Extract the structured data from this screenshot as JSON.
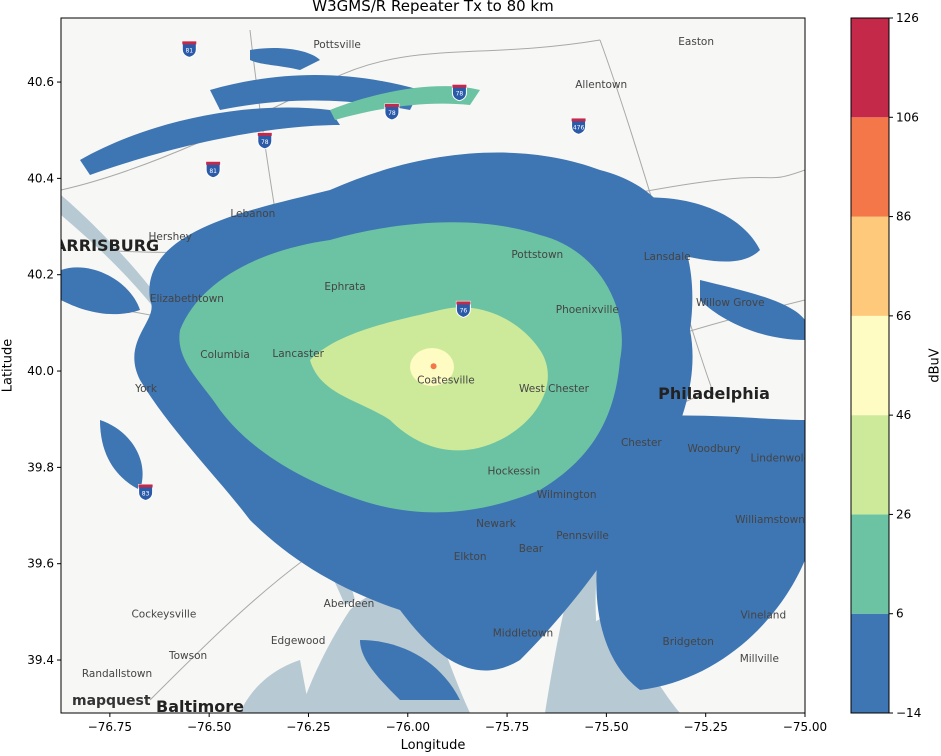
{
  "title": "W3GMS/R Repeater Tx to 80 km",
  "xlabel": "Longitude",
  "ylabel": "Latitude",
  "colorbar": {
    "label": "dBuV",
    "ticks": [
      "126",
      "106",
      "86",
      "66",
      "46",
      "26",
      "6",
      "−14"
    ],
    "bins": [
      {
        "from": -14,
        "to": 6,
        "color": "#3e75b3"
      },
      {
        "from": 6,
        "to": 26,
        "color": "#6cc3a3"
      },
      {
        "from": 26,
        "to": 46,
        "color": "#cdea9b"
      },
      {
        "from": 46,
        "to": 66,
        "color": "#fefcc2"
      },
      {
        "from": 66,
        "to": 86,
        "color": "#fec97b"
      },
      {
        "from": 86,
        "to": 106,
        "color": "#f4774a"
      },
      {
        "from": 106,
        "to": 126,
        "color": "#c4294a"
      }
    ]
  },
  "map": {
    "lon_range": [
      -76.873,
      -75.0
    ],
    "lat_range": [
      39.29,
      40.733
    ],
    "x_ticks": [
      "−76.75",
      "−76.50",
      "−76.25",
      "−76.00",
      "−75.75",
      "−75.50",
      "−75.25",
      "−75.00"
    ],
    "x_tick_values": [
      -76.75,
      -76.5,
      -76.25,
      -76.0,
      -75.75,
      -75.5,
      -75.25,
      -75.0
    ],
    "y_ticks": [
      "40.6",
      "40.4",
      "40.2",
      "40.0",
      "39.8",
      "39.6",
      "39.4"
    ],
    "y_tick_values": [
      40.6,
      40.4,
      40.2,
      40.0,
      39.8,
      39.6,
      39.4
    ],
    "water_color": "#b7c9d3",
    "attribution": "mapquest",
    "transmitter": {
      "lon": -75.935,
      "lat": 40.01
    },
    "places": [
      {
        "name": "Pottsville",
        "lon": -76.178,
        "lat": 40.679,
        "size": "s"
      },
      {
        "name": "Easton",
        "lon": -75.274,
        "lat": 40.685,
        "size": "s"
      },
      {
        "name": "Allentown",
        "lon": -75.513,
        "lat": 40.596,
        "size": "s"
      },
      {
        "name": "Lebanon",
        "lon": -76.39,
        "lat": 40.328,
        "size": "s"
      },
      {
        "name": "Hershey",
        "lon": -76.598,
        "lat": 40.28,
        "size": "s"
      },
      {
        "name": "HARRISBURG",
        "lon": -76.775,
        "lat": 40.258,
        "size": "l"
      },
      {
        "name": "Ephrata",
        "lon": -76.158,
        "lat": 40.177,
        "size": "s"
      },
      {
        "name": "Pottstown",
        "lon": -75.674,
        "lat": 40.243,
        "size": "s"
      },
      {
        "name": "Lansdale",
        "lon": -75.347,
        "lat": 40.239,
        "size": "s"
      },
      {
        "name": "Willow Grove",
        "lon": -75.188,
        "lat": 40.143,
        "size": "s"
      },
      {
        "name": "Phoenixville",
        "lon": -75.548,
        "lat": 40.129,
        "size": "s"
      },
      {
        "name": "Elizabethtown",
        "lon": -76.556,
        "lat": 40.152,
        "size": "s"
      },
      {
        "name": "Columbia",
        "lon": -76.46,
        "lat": 40.035,
        "size": "s"
      },
      {
        "name": "Lancaster",
        "lon": -76.276,
        "lat": 40.037,
        "size": "s"
      },
      {
        "name": "Coatesville",
        "lon": -75.904,
        "lat": 39.982,
        "size": "s"
      },
      {
        "name": "West Chester",
        "lon": -75.632,
        "lat": 39.965,
        "size": "s"
      },
      {
        "name": "Philadelphia",
        "lon": -75.229,
        "lat": 39.95,
        "size": "l"
      },
      {
        "name": "York",
        "lon": -76.659,
        "lat": 39.965,
        "size": "s"
      },
      {
        "name": "Chester",
        "lon": -75.412,
        "lat": 39.853,
        "size": "s"
      },
      {
        "name": "Woodbury",
        "lon": -75.229,
        "lat": 39.84,
        "size": "s"
      },
      {
        "name": "Lindenwold",
        "lon": -75.062,
        "lat": 39.82,
        "size": "s"
      },
      {
        "name": "Hockessin",
        "lon": -75.733,
        "lat": 39.793,
        "size": "s"
      },
      {
        "name": "Wilmington",
        "lon": -75.6,
        "lat": 39.745,
        "size": "s"
      },
      {
        "name": "Williamstown",
        "lon": -75.088,
        "lat": 39.693,
        "size": "s"
      },
      {
        "name": "Newark",
        "lon": -75.778,
        "lat": 39.685,
        "size": "s"
      },
      {
        "name": "Pennsville",
        "lon": -75.56,
        "lat": 39.66,
        "size": "s"
      },
      {
        "name": "Bear",
        "lon": -75.69,
        "lat": 39.633,
        "size": "s"
      },
      {
        "name": "Elkton",
        "lon": -75.843,
        "lat": 39.616,
        "size": "s"
      },
      {
        "name": "Aberdeen",
        "lon": -76.148,
        "lat": 39.518,
        "size": "s"
      },
      {
        "name": "Cockeysville",
        "lon": -76.614,
        "lat": 39.497,
        "size": "s"
      },
      {
        "name": "Edgewood",
        "lon": -76.276,
        "lat": 39.442,
        "size": "s"
      },
      {
        "name": "Towson",
        "lon": -76.553,
        "lat": 39.41,
        "size": "s"
      },
      {
        "name": "Middletown",
        "lon": -75.71,
        "lat": 39.457,
        "size": "s"
      },
      {
        "name": "Vineland",
        "lon": -75.105,
        "lat": 39.494,
        "size": "s"
      },
      {
        "name": "Bridgeton",
        "lon": -75.294,
        "lat": 39.44,
        "size": "s"
      },
      {
        "name": "Millville",
        "lon": -75.115,
        "lat": 39.404,
        "size": "s"
      },
      {
        "name": "Randallstown",
        "lon": -76.732,
        "lat": 39.373,
        "size": "s"
      },
      {
        "name": "Baltimore",
        "lon": -76.523,
        "lat": 39.3,
        "size": "l"
      }
    ],
    "highway_shields": [
      {
        "label": "81",
        "lon": -76.55,
        "lat": 40.67
      },
      {
        "label": "81",
        "lon": -76.49,
        "lat": 40.42
      },
      {
        "label": "78",
        "lon": -76.04,
        "lat": 40.54
      },
      {
        "label": "78",
        "lon": -75.87,
        "lat": 40.58
      },
      {
        "label": "78",
        "lon": -76.36,
        "lat": 40.48
      },
      {
        "label": "476",
        "lon": -75.57,
        "lat": 40.51
      },
      {
        "label": "76",
        "lon": -75.86,
        "lat": 40.13
      },
      {
        "label": "83",
        "lon": -76.66,
        "lat": 39.75
      }
    ]
  }
}
